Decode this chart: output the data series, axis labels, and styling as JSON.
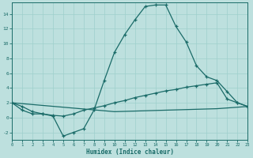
{
  "xlabel": "Humidex (Indice chaleur)",
  "bg_color": "#bde0de",
  "grid_color": "#9ecfcc",
  "line_color": "#1a6b68",
  "xlim": [
    0,
    23
  ],
  "ylim": [
    -3,
    15.5
  ],
  "xticks": [
    0,
    1,
    2,
    3,
    4,
    5,
    6,
    7,
    8,
    9,
    10,
    11,
    12,
    13,
    14,
    15,
    16,
    17,
    18,
    19,
    20,
    21,
    22,
    23
  ],
  "yticks": [
    -2,
    0,
    2,
    4,
    6,
    8,
    10,
    12,
    14
  ],
  "curve1_x": [
    0,
    1,
    2,
    3,
    4,
    5,
    6,
    7,
    8,
    9,
    10,
    11,
    12,
    13,
    14,
    15,
    16,
    17,
    18,
    19,
    20,
    21,
    22,
    23
  ],
  "curve1_y": [
    2.0,
    1.0,
    0.5,
    0.5,
    0.2,
    -2.5,
    -2.0,
    -1.5,
    1.0,
    5.0,
    8.8,
    11.2,
    13.2,
    15.0,
    15.2,
    15.2,
    12.3,
    10.2,
    7.0,
    5.5,
    5.0,
    3.5,
    2.0,
    1.5
  ],
  "curve2_x": [
    0,
    1,
    2,
    3,
    4,
    5,
    6,
    7,
    8,
    9,
    10,
    11,
    12,
    13,
    14,
    15,
    16,
    17,
    18,
    19,
    20,
    21,
    22,
    23
  ],
  "curve2_y": [
    2.0,
    1.5,
    0.8,
    0.5,
    0.3,
    0.2,
    0.5,
    1.0,
    1.3,
    1.6,
    2.0,
    2.3,
    2.7,
    3.0,
    3.3,
    3.6,
    3.8,
    4.1,
    4.3,
    4.5,
    4.7,
    2.5,
    2.0,
    1.5
  ],
  "curve3_x": [
    0,
    10,
    20,
    23
  ],
  "curve3_y": [
    2.0,
    0.8,
    1.2,
    1.5
  ]
}
